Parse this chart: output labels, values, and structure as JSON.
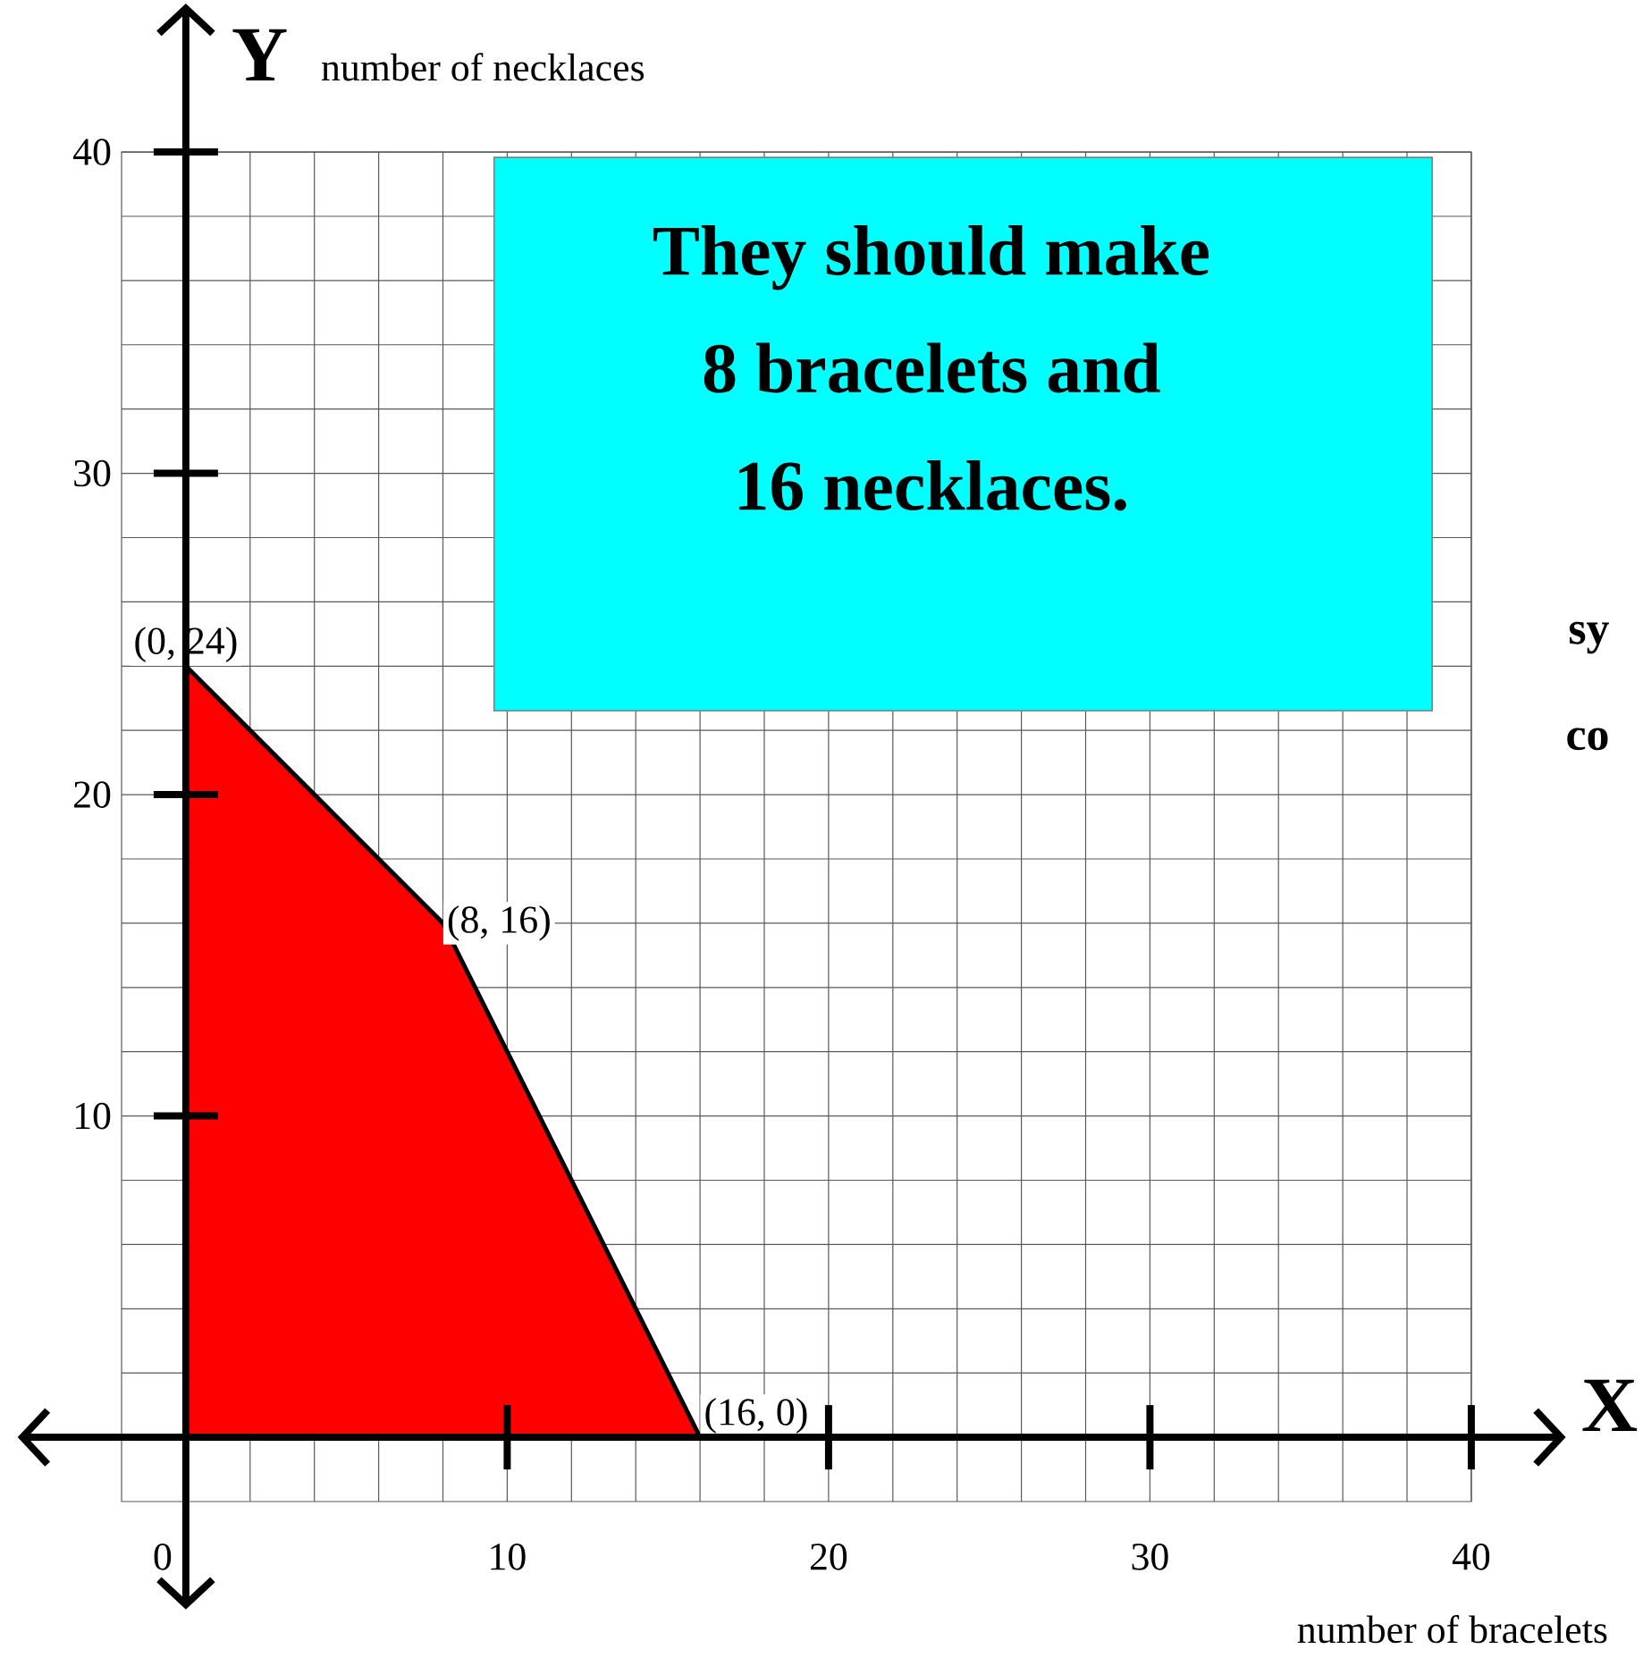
{
  "chart_data": {
    "type": "area",
    "xlabel": "number of bracelets",
    "ylabel": "number of necklaces",
    "x": [
      0,
      8,
      16
    ],
    "values": [
      24,
      16,
      0
    ],
    "color": "#ff0000",
    "xlim": [
      -2,
      40
    ],
    "ylim": [
      -2,
      40
    ],
    "xticks": [
      0,
      10,
      20,
      30,
      40
    ],
    "yticks": [
      {
        "value": 0,
        "label": null
      },
      10,
      20,
      30,
      40
    ],
    "grid": true,
    "annotations": [
      {
        "text": "(0, 24)",
        "x": 0,
        "y": 24
      },
      {
        "text": "(8, 16)",
        "x": 8,
        "y": 16
      },
      {
        "text": "(16, 0)",
        "x": 16,
        "y": 0
      },
      "They should make",
      "8 bracelets and",
      "16 necklaces.",
      "Y",
      "X",
      "sy",
      "co"
    ]
  }
}
